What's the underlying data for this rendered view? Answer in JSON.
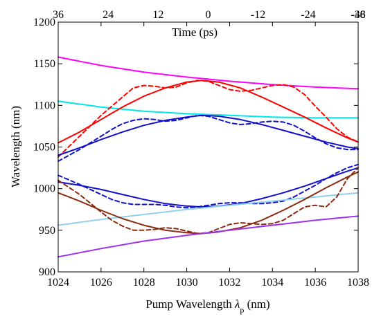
{
  "chart_data": {
    "type": "line",
    "xlabel": "Pump Wavelength λp (nm)",
    "xlabel_main": "Pump Wavelength ",
    "xlabel_symbol": "λ",
    "xlabel_sub": "p",
    "xlabel_unit": " (nm)",
    "ylabel": "Wavelength (nm)",
    "top_xlabel": "Time (ps)",
    "xlim": [
      1024,
      1038
    ],
    "ylim": [
      900,
      1200
    ],
    "x_ticks": [
      1024,
      1026,
      1028,
      1030,
      1032,
      1034,
      1036,
      1038
    ],
    "y_ticks": [
      900,
      950,
      1000,
      1050,
      1100,
      1150,
      1200
    ],
    "top_ticks": [
      {
        "x": 1024,
        "label": "36"
      },
      {
        "x": 1026.33,
        "label": "24"
      },
      {
        "x": 1028.67,
        "label": "12"
      },
      {
        "x": 1031,
        "label": "0"
      },
      {
        "x": 1033.33,
        "label": "-12"
      },
      {
        "x": 1035.67,
        "label": "-24"
      },
      {
        "x": 1038,
        "label": "-36"
      },
      {
        "x": 1040.33,
        "label": "-48"
      }
    ],
    "grid": false,
    "series": [
      {
        "color": "#ff00ff",
        "style": "solid",
        "x": [
          1024,
          1026,
          1028,
          1030,
          1032,
          1034,
          1036,
          1038
        ],
        "y": [
          1158,
          1148,
          1140,
          1134,
          1129,
          1125,
          1122,
          1120
        ]
      },
      {
        "color": "#00e5e5",
        "style": "solid",
        "x": [
          1024,
          1026,
          1028,
          1030,
          1032,
          1034,
          1036,
          1038
        ],
        "y": [
          1105,
          1098,
          1093,
          1090,
          1088,
          1086,
          1085,
          1085
        ]
      },
      {
        "color": "#ff0000",
        "style": "solid",
        "x": [
          1024,
          1025,
          1026,
          1027,
          1028,
          1029,
          1030,
          1030.7,
          1031.5,
          1032.5,
          1033.5,
          1034.5,
          1035.5,
          1036.5,
          1037.5,
          1038
        ],
        "y": [
          1055,
          1068,
          1083,
          1098,
          1111,
          1121,
          1128,
          1130,
          1128,
          1121,
          1110,
          1098,
          1086,
          1073,
          1061,
          1056
        ]
      },
      {
        "color": "#ff0000",
        "style": "dashed",
        "x": [
          1024,
          1025,
          1026,
          1027,
          1027.5,
          1028,
          1028.5,
          1029,
          1029.5,
          1030,
          1030.5,
          1031,
          1031.5,
          1032,
          1032.5,
          1033,
          1033.5,
          1034,
          1034.5,
          1035,
          1035.5,
          1036,
          1036.5,
          1037,
          1037.5,
          1038
        ],
        "y": [
          1038,
          1063,
          1088,
          1110,
          1121,
          1124,
          1123,
          1121,
          1122,
          1127,
          1130,
          1129,
          1124,
          1119,
          1117,
          1118,
          1121,
          1124,
          1125,
          1122,
          1113,
          1099,
          1086,
          1072,
          1062,
          1056
        ]
      },
      {
        "color": "#1010cc",
        "style": "solid",
        "x": [
          1024,
          1025,
          1026,
          1027,
          1028,
          1029,
          1030,
          1030.7,
          1031.5,
          1032.5,
          1033.5,
          1034.5,
          1035.5,
          1036.5,
          1037.5,
          1038
        ],
        "y": [
          1040,
          1049,
          1059,
          1068,
          1076,
          1082,
          1086,
          1088,
          1087,
          1083,
          1077,
          1070,
          1063,
          1056,
          1050,
          1048
        ]
      },
      {
        "color": "#1010cc",
        "style": "dashed",
        "x": [
          1024,
          1025,
          1026,
          1026.5,
          1027,
          1027.5,
          1028,
          1028.5,
          1029,
          1029.5,
          1030,
          1030.5,
          1031,
          1031.5,
          1032,
          1032.5,
          1033,
          1033.5,
          1034,
          1034.5,
          1035,
          1035.5,
          1036,
          1036.5,
          1037,
          1037.5,
          1038
        ],
        "y": [
          1033,
          1047,
          1063,
          1071,
          1078,
          1082,
          1084,
          1083,
          1081,
          1082,
          1085,
          1088,
          1087,
          1083,
          1079,
          1077,
          1078,
          1080,
          1081,
          1080,
          1076,
          1069,
          1061,
          1054,
          1049,
          1047,
          1047
        ]
      },
      {
        "color": "#1010cc",
        "style": "solid",
        "x": [
          1024,
          1025,
          1026,
          1027,
          1028,
          1029,
          1030,
          1030.7,
          1031.5,
          1032.5,
          1033.5,
          1034.5,
          1035.5,
          1036.5,
          1037.5,
          1038
        ],
        "y": [
          1008,
          1004,
          999,
          993,
          987,
          982,
          979,
          978,
          979,
          982,
          988,
          995,
          1003,
          1012,
          1021,
          1025
        ]
      },
      {
        "color": "#1010cc",
        "style": "dashed",
        "x": [
          1024,
          1025,
          1026,
          1026.5,
          1027,
          1027.5,
          1028,
          1028.5,
          1029,
          1029.5,
          1030,
          1030.5,
          1031,
          1031.5,
          1032,
          1032.5,
          1033,
          1033.5,
          1034,
          1034.5,
          1035,
          1035.5,
          1036,
          1036.5,
          1037,
          1037.5,
          1038
        ],
        "y": [
          1016,
          1005,
          993,
          987,
          983,
          981,
          981,
          981,
          980,
          978,
          977,
          978,
          980,
          982,
          983,
          983,
          982,
          982,
          983,
          985,
          990,
          997,
          1004,
          1012,
          1019,
          1025,
          1029
        ]
      },
      {
        "color": "#8fcfef",
        "style": "solid",
        "x": [
          1024,
          1026,
          1028,
          1030,
          1032,
          1034,
          1036,
          1038
        ],
        "y": [
          956,
          963,
          969,
          975,
          980,
          985,
          990,
          995
        ]
      },
      {
        "color": "#8b2a10",
        "style": "solid",
        "x": [
          1024,
          1025,
          1026,
          1027,
          1028,
          1029,
          1030,
          1030.7,
          1031.5,
          1032.5,
          1033.5,
          1034.5,
          1035.5,
          1036.5,
          1037.5,
          1038
        ],
        "y": [
          995,
          985,
          974,
          964,
          956,
          950,
          947,
          946,
          948,
          953,
          962,
          974,
          987,
          1001,
          1014,
          1020
        ]
      },
      {
        "color": "#8b2a10",
        "style": "dashed",
        "x": [
          1024,
          1025,
          1026,
          1026.5,
          1027,
          1027.5,
          1028,
          1028.5,
          1029,
          1029.5,
          1030,
          1030.5,
          1031,
          1031.5,
          1032,
          1032.5,
          1033,
          1033.5,
          1034,
          1034.5,
          1035,
          1035.5,
          1036,
          1036.5,
          1037,
          1037.5,
          1038
        ],
        "y": [
          1010,
          993,
          972,
          962,
          955,
          950,
          950,
          951,
          953,
          952,
          949,
          946,
          947,
          952,
          957,
          959,
          958,
          957,
          958,
          962,
          970,
          978,
          980,
          978,
          990,
          1012,
          1025
        ]
      },
      {
        "color": "#9b30ef",
        "style": "solid",
        "x": [
          1024,
          1026,
          1028,
          1030,
          1032,
          1034,
          1036,
          1038
        ],
        "y": [
          918,
          928,
          937,
          944,
          950,
          956,
          962,
          967
        ]
      }
    ]
  }
}
